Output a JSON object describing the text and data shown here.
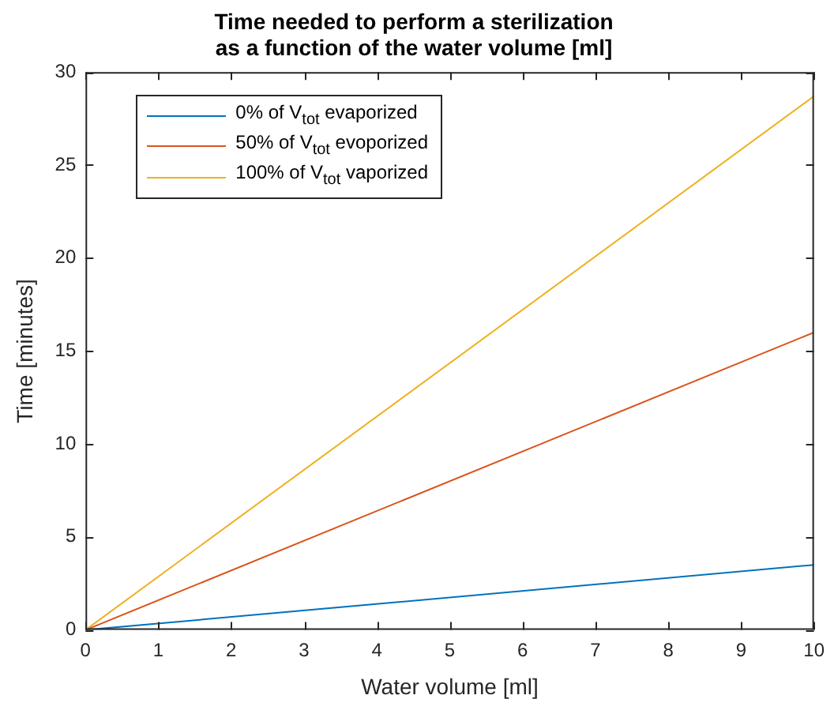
{
  "chart_data": {
    "type": "line",
    "title": "Time needed to perform a sterilization\nas a function of the water volume [ml]",
    "xlabel": "Water volume [ml]",
    "ylabel": "Time [minutes]",
    "x": [
      0,
      10
    ],
    "series": [
      {
        "name": "0% of V$_{tot}$ evaporized",
        "color": "#0072bd",
        "values": [
          0,
          3.5
        ]
      },
      {
        "name": "50% of V$_{tot}$ evoporized",
        "color": "#d95319",
        "values": [
          0,
          16
        ]
      },
      {
        "name": "100% of V$_{tot}$ vaporized",
        "color": "#edb120",
        "values": [
          0,
          28.7
        ]
      }
    ],
    "xlim": [
      0,
      10
    ],
    "xticks": [
      0,
      1,
      2,
      3,
      4,
      5,
      6,
      7,
      8,
      9,
      10
    ],
    "ylim": [
      0,
      30
    ],
    "yticks": [
      0,
      5,
      10,
      15,
      20,
      25,
      30
    ],
    "grid": false,
    "legend": "top left",
    "marker": "none",
    "line_style": "solid"
  }
}
